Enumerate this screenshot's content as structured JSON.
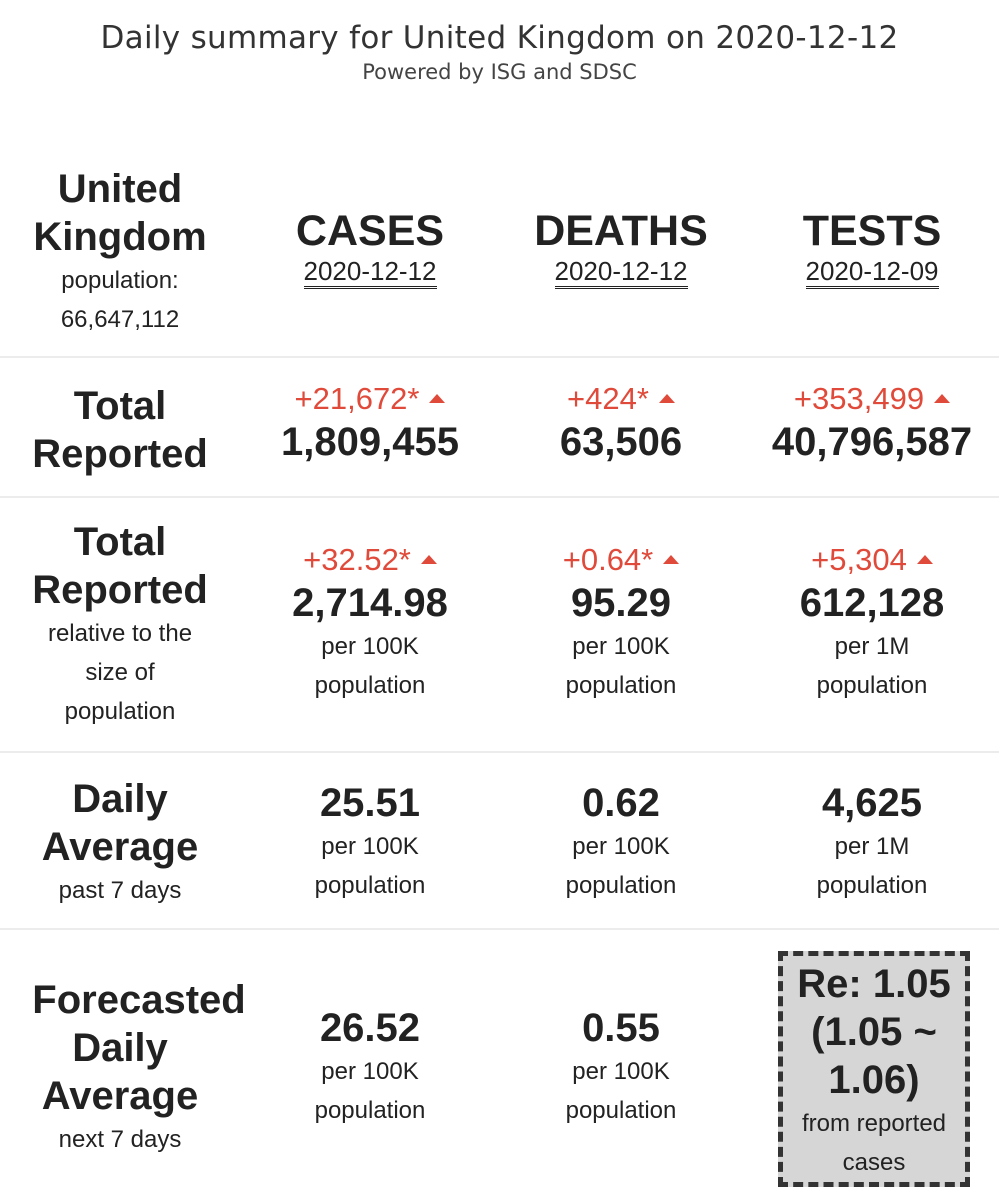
{
  "header": {
    "title": "Daily summary for United Kingdom on 2020-12-12",
    "subtitle": "Powered by ISG and SDSC"
  },
  "region": {
    "name_line1": "United",
    "name_line2": "Kingdom",
    "population_label": "population:",
    "population_value": "66,647,112"
  },
  "columns": [
    {
      "name": "CASES",
      "date": "2020-12-12"
    },
    {
      "name": "DEATHS",
      "date": "2020-12-12"
    },
    {
      "name": "TESTS",
      "date": "2020-12-09"
    }
  ],
  "rows": {
    "total_reported": {
      "label_line1": "Total",
      "label_line2": "Reported",
      "cases": {
        "delta": "+21,672*",
        "value": "1,809,455"
      },
      "deaths": {
        "delta": "+424*",
        "value": "63,506"
      },
      "tests": {
        "delta": "+353,499",
        "value": "40,796,587"
      }
    },
    "relative": {
      "label_line1": "Total",
      "label_line2": "Reported",
      "note_line1": "relative to the",
      "note_line2": "size of",
      "note_line3": "population",
      "cases": {
        "delta": "+32.52*",
        "value": "2,714.98",
        "unit_line1": "per 100K",
        "unit_line2": "population"
      },
      "deaths": {
        "delta": "+0.64*",
        "value": "95.29",
        "unit_line1": "per 100K",
        "unit_line2": "population"
      },
      "tests": {
        "delta": "+5,304",
        "value": "612,128",
        "unit_line1": "per 1M",
        "unit_line2": "population"
      }
    },
    "daily_average": {
      "label_line1": "Daily",
      "label_line2": "Average",
      "note": "past 7 days",
      "cases": {
        "value": "25.51",
        "unit_line1": "per 100K",
        "unit_line2": "population"
      },
      "deaths": {
        "value": "0.62",
        "unit_line1": "per 100K",
        "unit_line2": "population"
      },
      "tests": {
        "value": "4,625",
        "unit_line1": "per 1M",
        "unit_line2": "population"
      }
    },
    "forecast": {
      "label_line1": "Forecasted",
      "label_line2": "Daily",
      "label_line3": "Average",
      "note": "next 7 days",
      "cases": {
        "value": "26.52",
        "unit_line1": "per 100K",
        "unit_line2": "population"
      },
      "deaths": {
        "value": "0.55",
        "unit_line1": "per 100K",
        "unit_line2": "population"
      },
      "re": {
        "line1": "Re: 1.05",
        "line2": "(1.05 ~",
        "line3": "1.06)",
        "note_line1": "from reported",
        "note_line2": "cases"
      }
    }
  },
  "colors": {
    "delta_red": "#e04a3a",
    "text_dark": "#222222",
    "re_box_bg": "#d6d6d6",
    "separator": "#ececec"
  },
  "icons": {
    "delta_indicator": "triangle-up-icon"
  }
}
